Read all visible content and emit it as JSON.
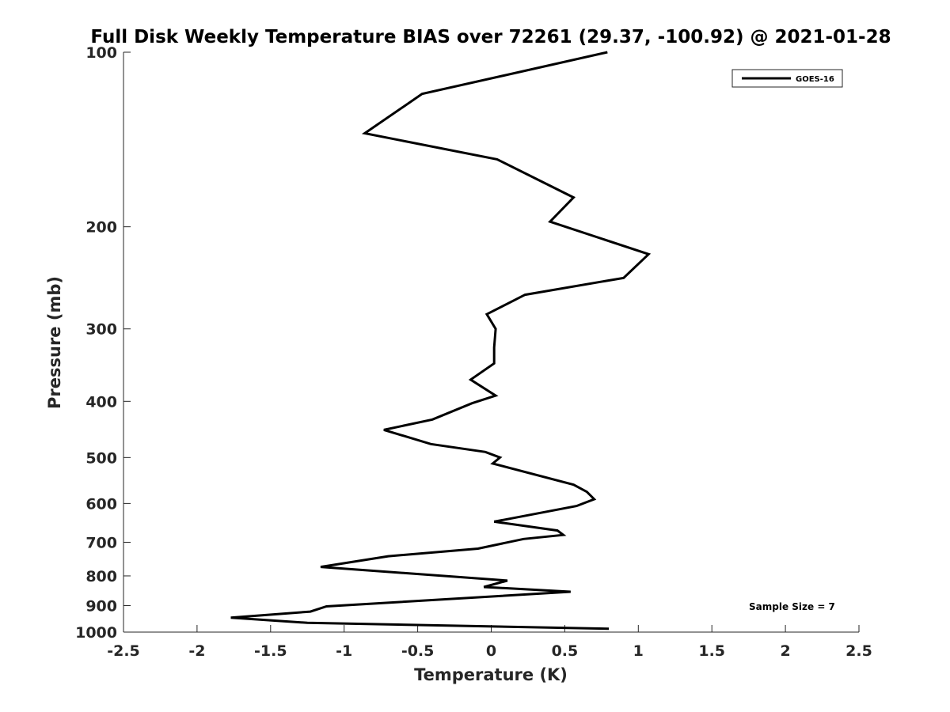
{
  "chart_data": {
    "type": "line",
    "title": "Full Disk Weekly Temperature BIAS over 72261 (29.37, -100.92) @ 2021-01-28",
    "xlabel": "Temperature (K)",
    "ylabel": "Pressure (mb)",
    "xlim": [
      -2.5,
      2.5
    ],
    "ylim": [
      100,
      1000
    ],
    "yscale": "log",
    "y_reversed": true,
    "grid": false,
    "legend_position": "top-right",
    "x_ticks": [
      "-2.5",
      "-2",
      "-1.5",
      "-1",
      "-0.5",
      "0",
      "0.5",
      "1",
      "1.5",
      "2",
      "2.5"
    ],
    "x_tick_values": [
      -2.5,
      -2,
      -1.5,
      -1,
      -0.5,
      0,
      0.5,
      1,
      1.5,
      2,
      2.5
    ],
    "y_ticks": [
      "100",
      "200",
      "300",
      "400",
      "500",
      "600",
      "700",
      "800",
      "900",
      "1000"
    ],
    "y_tick_values": [
      100,
      200,
      300,
      400,
      500,
      600,
      700,
      800,
      900,
      1000
    ],
    "annotation": "Sample Size = 7",
    "series": [
      {
        "name": "GOES-16",
        "color": "#000000",
        "x": [
          0.79,
          -0.47,
          -0.86,
          0.04,
          0.56,
          0.4,
          1.07,
          0.9,
          0.23,
          -0.03,
          0.03,
          0.02,
          0.02,
          -0.14,
          0.03,
          -0.13,
          -0.4,
          -0.73,
          -0.41,
          -0.04,
          0.06,
          0.01,
          0.56,
          0.65,
          0.7,
          0.58,
          0.02,
          0.45,
          0.49,
          0.22,
          -0.09,
          -0.7,
          -1.16,
          0.11,
          -0.05,
          0.54,
          -1.12,
          -1.23,
          -1.77,
          -1.25,
          0.8
        ],
        "y": [
          100,
          118,
          138,
          153,
          178,
          196,
          223,
          245,
          262,
          283,
          300,
          323,
          344,
          367,
          391,
          403,
          430,
          448,
          474,
          489,
          500,
          512,
          557,
          573,
          590,
          606,
          645,
          668,
          680,
          691,
          718,
          740,
          772,
          815,
          836,
          852,
          903,
          922,
          944,
          964,
          987
        ]
      }
    ]
  }
}
